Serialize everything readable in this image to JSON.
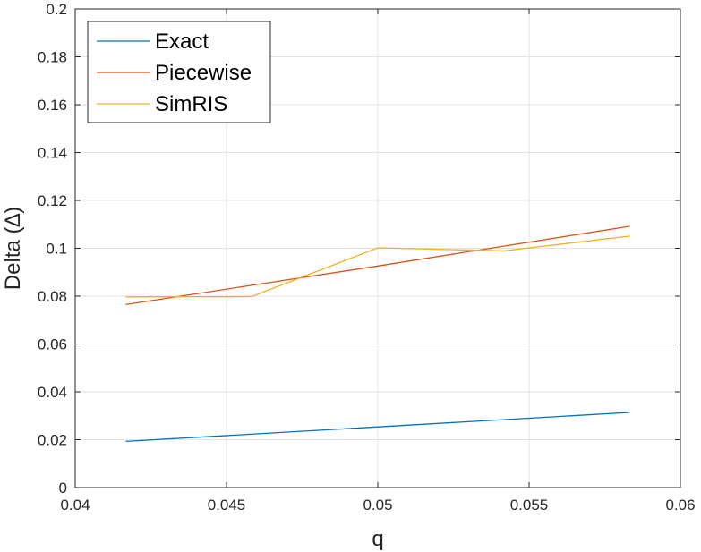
{
  "chart_data": {
    "type": "line",
    "xlabel": "q",
    "ylabel": "Delta (∆)",
    "xlim": [
      0.04,
      0.06
    ],
    "ylim": [
      0,
      0.2
    ],
    "xticks": [
      "0.04",
      "0.045",
      "0.05",
      "0.055",
      "0.06"
    ],
    "yticks": [
      "0",
      "0.02",
      "0.04",
      "0.06",
      "0.08",
      "0.1",
      "0.12",
      "0.14",
      "0.16",
      "0.18",
      "0.2"
    ],
    "grid": true,
    "legend_position": "top-left",
    "series": [
      {
        "name": "Exact",
        "color": "#0072BD",
        "x": [
          0.04167,
          0.05833
        ],
        "y": [
          0.0193,
          0.0314
        ]
      },
      {
        "name": "Piecewise",
        "color": "#D95319",
        "x": [
          0.04167,
          0.05,
          0.05833
        ],
        "y": [
          0.0765,
          0.0926,
          0.1092
        ]
      },
      {
        "name": "SimRIS",
        "color": "#EDB120",
        "x": [
          0.04167,
          0.04583,
          0.05,
          0.05417,
          0.05833
        ],
        "y": [
          0.0797,
          0.0798,
          0.1002,
          0.0989,
          0.1051
        ]
      }
    ]
  }
}
